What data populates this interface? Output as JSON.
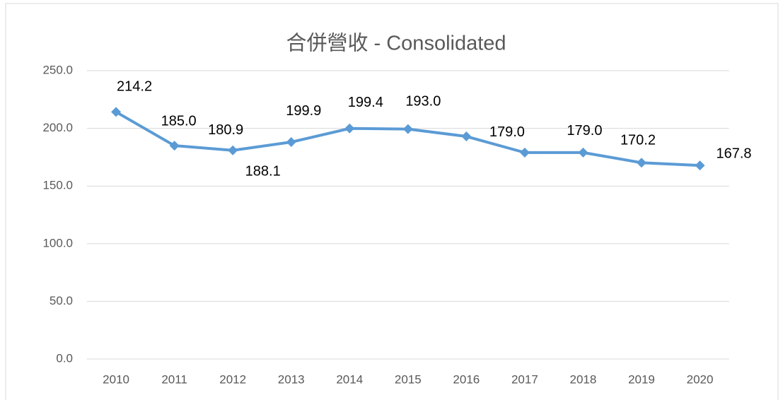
{
  "chart_data": {
    "type": "line",
    "title": "合併營收 - Consolidated",
    "categories": [
      "2010",
      "2011",
      "2012",
      "2013",
      "2014",
      "2015",
      "2016",
      "2017",
      "2018",
      "2019",
      "2020"
    ],
    "series": [
      {
        "name": "合併營收",
        "color": "#5b9bd5",
        "values": [
          214.2,
          185.0,
          180.9,
          188.1,
          199.9,
          199.4,
          193.0,
          179.0,
          179.0,
          170.2,
          167.8
        ],
        "value_labels": [
          "214.2",
          "185.0",
          "180.9",
          "188.1",
          "199.9",
          "199.4",
          "193.0",
          "179.0",
          "179.0",
          "170.2",
          "167.8"
        ]
      }
    ],
    "ylim": [
      0,
      250
    ],
    "yticks": [
      {
        "value": 0,
        "label": "0.0"
      },
      {
        "value": 50,
        "label": "50.0"
      },
      {
        "value": 100,
        "label": "100.0"
      },
      {
        "value": 150,
        "label": "150.0"
      },
      {
        "value": 200,
        "label": "200.0"
      },
      {
        "value": 250,
        "label": "250.0"
      }
    ],
    "grid": true
  }
}
